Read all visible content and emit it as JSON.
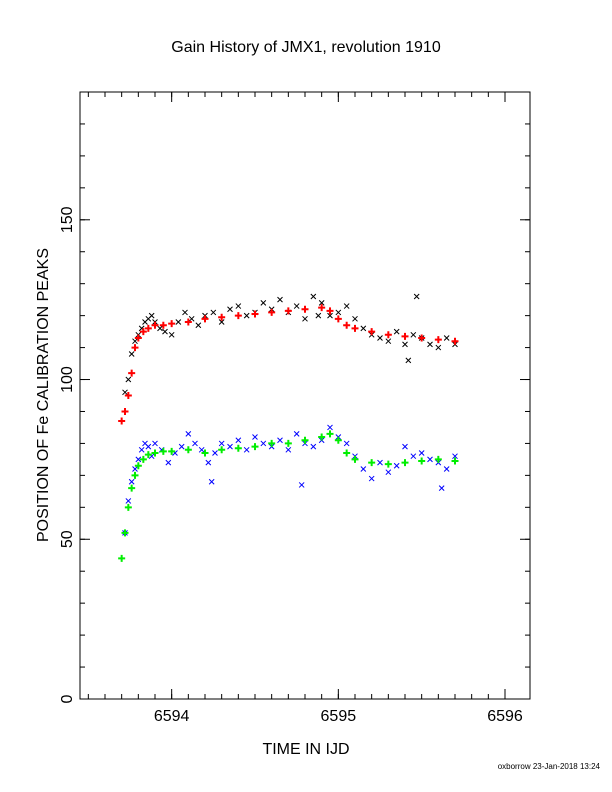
{
  "chart_data": {
    "type": "scatter",
    "title": "Gain History of JMX1, revolution 1910",
    "xlabel": "TIME IN IJD",
    "ylabel": "POSITION OF Fe CALIBRATION PEAKS",
    "xlim": [
      6593.45,
      6596.15
    ],
    "ylim": [
      0,
      190
    ],
    "xticks": [
      6594,
      6595,
      6596
    ],
    "xtick_labels": [
      "6594",
      "6595",
      "6596"
    ],
    "yticks": [
      0,
      50,
      100,
      150
    ],
    "ytick_labels": [
      "0",
      "50",
      "100",
      "150"
    ],
    "grid": false,
    "series": [
      {
        "marker": "x",
        "color": "#000000",
        "x": [
          6593.72,
          6593.74,
          6593.76,
          6593.78,
          6593.8,
          6593.82,
          6593.84,
          6593.86,
          6593.88,
          6593.9,
          6593.93,
          6593.96,
          6594.0,
          6594.04,
          6594.08,
          6594.12,
          6594.16,
          6594.2,
          6594.25,
          6594.3,
          6594.35,
          6594.4,
          6594.45,
          6594.5,
          6594.55,
          6594.6,
          6594.65,
          6594.7,
          6594.75,
          6594.8,
          6594.85,
          6594.9,
          6594.95,
          6595.0,
          6595.05,
          6595.1,
          6595.15,
          6595.2,
          6595.25,
          6595.3,
          6595.35,
          6595.4,
          6595.45,
          6595.5,
          6595.55,
          6595.6,
          6595.65,
          6595.7,
          6595.47,
          6595.42,
          6594.88
        ],
        "y": [
          96,
          100,
          108,
          112,
          114,
          116,
          118,
          119,
          120,
          118,
          116,
          115,
          114,
          118,
          121,
          119,
          117,
          120,
          121,
          118,
          122,
          123,
          120,
          121,
          124,
          122,
          125,
          121,
          123,
          119,
          126,
          124,
          120,
          121,
          123,
          119,
          116,
          114,
          113,
          112,
          115,
          111,
          114,
          113,
          111,
          110,
          113,
          111,
          126,
          106,
          120
        ]
      },
      {
        "marker": "+",
        "color": "#ff0000",
        "x": [
          6593.7,
          6593.72,
          6593.74,
          6593.76,
          6593.78,
          6593.8,
          6593.83,
          6593.86,
          6593.9,
          6593.95,
          6594.0,
          6594.1,
          6594.2,
          6594.3,
          6594.4,
          6594.5,
          6594.6,
          6594.7,
          6594.8,
          6594.9,
          6594.95,
          6595.0,
          6595.05,
          6595.1,
          6595.2,
          6595.3,
          6595.4,
          6595.5,
          6595.6,
          6595.7
        ],
        "y": [
          87,
          90,
          95,
          102,
          110,
          113,
          115,
          116,
          117,
          117,
          117.5,
          118,
          119,
          119.5,
          120,
          120.5,
          121,
          121.5,
          122,
          122.5,
          121.5,
          119,
          117,
          116,
          115,
          114,
          113.5,
          113,
          112.5,
          112
        ]
      },
      {
        "marker": "x",
        "color": "#0000ff",
        "x": [
          6593.72,
          6593.74,
          6593.76,
          6593.78,
          6593.8,
          6593.82,
          6593.84,
          6593.86,
          6593.88,
          6593.9,
          6593.94,
          6593.98,
          6594.02,
          6594.06,
          6594.1,
          6594.14,
          6594.18,
          6594.22,
          6594.26,
          6594.3,
          6594.35,
          6594.4,
          6594.45,
          6594.5,
          6594.55,
          6594.6,
          6594.65,
          6594.7,
          6594.75,
          6594.8,
          6594.85,
          6594.9,
          6594.95,
          6595.0,
          6595.05,
          6595.1,
          6595.15,
          6595.2,
          6595.25,
          6595.3,
          6595.35,
          6595.4,
          6595.45,
          6595.5,
          6595.55,
          6595.6,
          6595.65,
          6595.7,
          6594.78,
          6594.24,
          6595.62
        ],
        "y": [
          52,
          62,
          68,
          72,
          75,
          78,
          80,
          79,
          76,
          80,
          78,
          74,
          77,
          79,
          83,
          80,
          78,
          74,
          77,
          80,
          79,
          81,
          78,
          82,
          80,
          79,
          81,
          78,
          83,
          80,
          79,
          81,
          85,
          82,
          80,
          76,
          72,
          69,
          74,
          71,
          73,
          79,
          76,
          77,
          75,
          74,
          72,
          76,
          67,
          68,
          66
        ]
      },
      {
        "marker": "+",
        "color": "#00ee00",
        "x": [
          6593.7,
          6593.72,
          6593.74,
          6593.76,
          6593.78,
          6593.8,
          6593.83,
          6593.86,
          6593.9,
          6593.95,
          6594.0,
          6594.1,
          6594.2,
          6594.3,
          6594.4,
          6594.5,
          6594.6,
          6594.7,
          6594.8,
          6594.9,
          6594.95,
          6595.0,
          6595.05,
          6595.1,
          6595.2,
          6595.3,
          6595.4,
          6595.5,
          6595.6,
          6595.7
        ],
        "y": [
          44,
          52,
          60,
          66,
          70,
          73,
          75,
          76.5,
          77,
          77.5,
          77.5,
          78,
          77,
          78,
          78.5,
          79,
          80,
          80,
          81,
          82,
          83,
          81,
          77,
          75,
          74,
          73.5,
          74,
          74.5,
          75,
          74.5
        ]
      }
    ],
    "annotations": [
      {
        "text": "oxborrow 23-Jan-2018 13:24"
      }
    ]
  }
}
